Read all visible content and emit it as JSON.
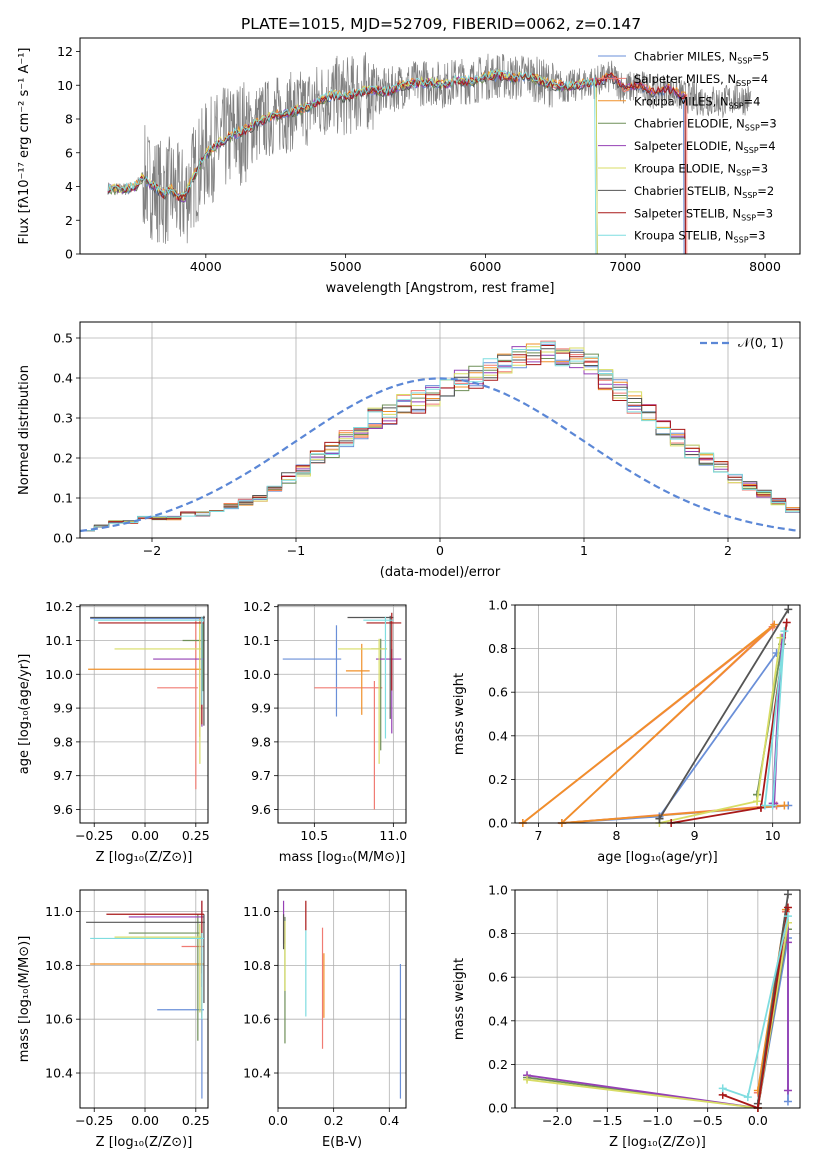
{
  "figure_title": "PLATE=1015, MJD=52709, FIBERID=0062, z=0.147",
  "series_colors": [
    "#6a8fd8",
    "#f07b73",
    "#f0902a",
    "#6f8f58",
    "#9540b5",
    "#d8dd66",
    "#555555",
    "#a81818",
    "#7fdde0"
  ],
  "chart_data": [
    {
      "id": "spectrum",
      "type": "line",
      "xlabel": "wavelength [Angstrom, rest frame]",
      "ylabel": "Flux [fλ10⁻¹⁷ erg cm⁻² s⁻¹ A⁻¹]",
      "xlim": [
        3100,
        8250
      ],
      "ylim": [
        0,
        12.8
      ],
      "x_ticks": [
        "4000",
        "5000",
        "6000",
        "7000",
        "8000"
      ],
      "y_ticks": [
        "0",
        "2",
        "4",
        "6",
        "8",
        "10",
        "12"
      ],
      "data_color": "#808080",
      "data": {
        "x": [
          3300,
          3400,
          3500,
          3550,
          3600,
          3650,
          3700,
          3750,
          3800,
          3850,
          3900,
          4000,
          4100,
          4200,
          4300,
          4400,
          4500,
          4600,
          4700,
          4800,
          4900,
          5000,
          5100,
          5200,
          5300,
          5400,
          5500,
          5600,
          5700,
          5800,
          5900,
          6000,
          6100,
          6200,
          6300,
          6400,
          6500,
          6600,
          6700,
          6800,
          6900,
          7000,
          7100,
          7200,
          7300,
          7400,
          7500,
          7600,
          7700,
          7800,
          7900
        ],
        "y": [
          3.9,
          3.8,
          4.0,
          4.6,
          4.1,
          3.9,
          3.5,
          3.9,
          3.4,
          3.3,
          4.4,
          5.9,
          6.6,
          7.1,
          7.4,
          7.9,
          8.2,
          8.4,
          8.6,
          9.0,
          9.4,
          9.3,
          9.6,
          9.7,
          9.6,
          10.0,
          10.1,
          10.2,
          10.0,
          10.3,
          10.2,
          10.5,
          10.6,
          10.4,
          10.6,
          10.2,
          10.0,
          9.9,
          10.1,
          10.2,
          10.5,
          9.8,
          10.0,
          9.6,
          9.8,
          9.4,
          9.2,
          9.1,
          9.0,
          9.3,
          9.1
        ]
      },
      "legend_position": "upper-right",
      "series": [
        {
          "name": "Chabrier MILES, N",
          "sub": "SSP",
          "suffix": "=5"
        },
        {
          "name": "Salpeter MILES, N",
          "sub": "SSP",
          "suffix": "=4"
        },
        {
          "name": "Kroupa MILES, N",
          "sub": "SSP",
          "suffix": "=4"
        },
        {
          "name": "Chabrier ELODIE, N",
          "sub": "SSP",
          "suffix": "=3"
        },
        {
          "name": "Salpeter ELODIE, N",
          "sub": "SSP",
          "suffix": "=4"
        },
        {
          "name": "Kroupa ELODIE, N",
          "sub": "SSP",
          "suffix": "=3"
        },
        {
          "name": "Chabrier STELIB, N",
          "sub": "SSP",
          "suffix": "=2"
        },
        {
          "name": "Salpeter STELIB, N",
          "sub": "SSP",
          "suffix": "=3"
        },
        {
          "name": "Kroupa STELIB, N",
          "sub": "SSP",
          "suffix": "=3"
        }
      ]
    },
    {
      "id": "residual-histogram",
      "type": "histogram",
      "xlabel": "(data-model)/error",
      "ylabel": "Normed distribution",
      "xlim": [
        -2.5,
        2.5
      ],
      "ylim": [
        0,
        0.54
      ],
      "x_ticks": [
        "−2",
        "−1",
        "0",
        "1",
        "2"
      ],
      "y_ticks": [
        "0.0",
        "0.1",
        "0.2",
        "0.3",
        "0.4",
        "0.5"
      ],
      "grid": true,
      "legend_position": "upper-right",
      "reference_curve": {
        "name": "𝒩(0, 1)",
        "mean": 0,
        "sigma": 1,
        "color": "#5b87d6"
      },
      "bin_width": 0.1,
      "bin_start": -2.5,
      "histogram_values": [
        0.02,
        0.03,
        0.04,
        0.04,
        0.05,
        0.05,
        0.05,
        0.06,
        0.06,
        0.07,
        0.08,
        0.09,
        0.1,
        0.12,
        0.15,
        0.17,
        0.2,
        0.22,
        0.25,
        0.27,
        0.3,
        0.31,
        0.33,
        0.34,
        0.36,
        0.38,
        0.39,
        0.4,
        0.42,
        0.44,
        0.45,
        0.46,
        0.47,
        0.46,
        0.45,
        0.43,
        0.4,
        0.37,
        0.34,
        0.31,
        0.28,
        0.25,
        0.22,
        0.2,
        0.18,
        0.15,
        0.13,
        0.11,
        0.09,
        0.07
      ]
    },
    {
      "id": "age-vs-Z",
      "type": "errorbar",
      "xlabel": "Z [log₁₀(Z/Z⊙)]",
      "ylabel": "age  [log₁₀(age/yr)]",
      "xlim": [
        -0.32,
        0.31
      ],
      "ylim": [
        9.56,
        10.205
      ],
      "x_ticks": [
        "−0.25",
        "0.00",
        "0.25"
      ],
      "x_tick_values": [
        -0.25,
        0,
        0.25
      ],
      "y_ticks": [
        "9.6",
        "9.7",
        "9.8",
        "9.9",
        "10.0",
        "10.1",
        "10.2"
      ],
      "y_tick_values": [
        9.6,
        9.7,
        9.8,
        9.9,
        10.0,
        10.1,
        10.2
      ],
      "grid": true,
      "points": [
        {
          "s": 0,
          "x": 0.28,
          "xerr_lo": 0.55,
          "xerr_hi": 0.01,
          "y": 10.165,
          "yerr_lo": 0.27,
          "yerr_hi": 0.005
        },
        {
          "s": 1,
          "x": 0.25,
          "xerr_lo": 0.19,
          "xerr_hi": 0.01,
          "y": 9.96,
          "yerr_lo": 0.3,
          "yerr_hi": 0.2
        },
        {
          "s": 2,
          "x": 0.27,
          "xerr_lo": 0.55,
          "xerr_hi": 0.01,
          "y": 10.015,
          "yerr_lo": 0.2,
          "yerr_hi": 0.15
        },
        {
          "s": 3,
          "x": 0.285,
          "xerr_lo": 0.1,
          "xerr_hi": 0.01,
          "y": 10.1,
          "yerr_lo": 0.15,
          "yerr_hi": 0.05
        },
        {
          "s": 4,
          "x": 0.28,
          "xerr_lo": 0.24,
          "xerr_hi": 0.01,
          "y": 10.045,
          "yerr_lo": 0.2,
          "yerr_hi": 0.1
        },
        {
          "s": 5,
          "x": 0.27,
          "xerr_lo": 0.42,
          "xerr_hi": 0.01,
          "y": 10.075,
          "yerr_lo": 0.34,
          "yerr_hi": 0.08
        },
        {
          "s": 6,
          "x": 0.29,
          "xerr_lo": 0.56,
          "xerr_hi": 0.005,
          "y": 10.168,
          "yerr_lo": 0.32,
          "yerr_hi": 0.005
        },
        {
          "s": 7,
          "x": 0.28,
          "xerr_lo": 0.51,
          "xerr_hi": 0.01,
          "y": 10.152,
          "yerr_lo": 0.3,
          "yerr_hi": 0.01
        },
        {
          "s": 8,
          "x": 0.28,
          "xerr_lo": 0.53,
          "xerr_hi": 0.01,
          "y": 10.16,
          "yerr_lo": 0.25,
          "yerr_hi": 0.01
        }
      ]
    },
    {
      "id": "age-vs-mass",
      "type": "errorbar",
      "xlabel": "mass [log₁₀(M/M⊙)]",
      "ylabel": "",
      "xlim": [
        10.27,
        11.08
      ],
      "ylim": [
        9.56,
        10.205
      ],
      "x_ticks": [
        "10.5",
        "11.0"
      ],
      "x_tick_values": [
        10.5,
        11.0
      ],
      "y_ticks": [
        "9.6",
        "9.7",
        "9.8",
        "9.9",
        "10.0",
        "10.1",
        "10.2"
      ],
      "y_tick_values": [
        9.6,
        9.7,
        9.8,
        9.9,
        10.0,
        10.1,
        10.2
      ],
      "grid": true,
      "points": [
        {
          "s": 0,
          "x": 10.64,
          "xerr_lo": 0.34,
          "xerr_hi": 0.03,
          "y": 10.045,
          "yerr_lo": 0.17,
          "yerr_hi": 0.1
        },
        {
          "s": 1,
          "x": 10.88,
          "xerr_lo": 0.38,
          "xerr_hi": 0.05,
          "y": 9.96,
          "yerr_lo": 0.36,
          "yerr_hi": 0.02
        },
        {
          "s": 2,
          "x": 10.8,
          "xerr_lo": 0.1,
          "xerr_hi": 0.05,
          "y": 10.01,
          "yerr_lo": 0.13,
          "yerr_hi": 0.08
        },
        {
          "s": 3,
          "x": 10.92,
          "xerr_lo": 0.06,
          "xerr_hi": 0.04,
          "y": 10.075,
          "yerr_lo": 0.3,
          "yerr_hi": 0.03
        },
        {
          "s": 4,
          "x": 10.99,
          "xerr_lo": 0.1,
          "xerr_hi": 0.06,
          "y": 10.045,
          "yerr_lo": 0.22,
          "yerr_hi": 0.03
        },
        {
          "s": 5,
          "x": 10.91,
          "xerr_lo": 0.26,
          "xerr_hi": 0.05,
          "y": 10.075,
          "yerr_lo": 0.34,
          "yerr_hi": 0.03
        },
        {
          "s": 6,
          "x": 10.98,
          "xerr_lo": 0.27,
          "xerr_hi": 0.02,
          "y": 10.168,
          "yerr_lo": 0.3,
          "yerr_hi": 0.005
        },
        {
          "s": 7,
          "x": 10.99,
          "xerr_lo": 0.16,
          "xerr_hi": 0.06,
          "y": 10.152,
          "yerr_lo": 0.2,
          "yerr_hi": 0.03
        },
        {
          "s": 8,
          "x": 10.95,
          "xerr_lo": 0.14,
          "xerr_hi": 0.05,
          "y": 10.16,
          "yerr_lo": 0.35,
          "yerr_hi": 0.01
        }
      ]
    },
    {
      "id": "weight-vs-age",
      "type": "line",
      "xlabel": "age  [log₁₀(age/yr)]",
      "ylabel": "mass weight",
      "xlim": [
        6.7,
        10.35
      ],
      "ylim": [
        0,
        1.0
      ],
      "x_ticks": [
        "7",
        "8",
        "9",
        "10"
      ],
      "x_tick_values": [
        7,
        8,
        9,
        10
      ],
      "y_ticks": [
        "0.0",
        "0.2",
        "0.4",
        "0.6",
        "0.8",
        "1.0"
      ],
      "y_tick_values": [
        0,
        0.2,
        0.4,
        0.6,
        0.8,
        1.0
      ],
      "grid": true,
      "series": [
        {
          "s": 0,
          "x": [
            8.55,
            10.05,
            8.55,
            7.3,
            10.2
          ],
          "y": [
            0.03,
            0.78,
            0.03,
            0.0,
            0.08
          ]
        },
        {
          "s": 1,
          "x": [
            6.8,
            10.0,
            7.3,
            10.05
          ],
          "y": [
            0.0,
            0.9,
            0.0,
            0.08
          ]
        },
        {
          "s": 2,
          "x": [
            6.8,
            10.02,
            7.3,
            10.15
          ],
          "y": [
            0.0,
            0.91,
            0.0,
            0.08
          ]
        },
        {
          "s": 3,
          "x": [
            9.8,
            10.12,
            9.8
          ],
          "y": [
            0.13,
            0.82,
            0.13
          ]
        },
        {
          "s": 4,
          "x": [
            10.0,
            10.12,
            10.02
          ],
          "y": [
            0.09,
            0.85,
            0.09
          ]
        },
        {
          "s": 5,
          "x": [
            8.55,
            9.8,
            10.1,
            9.8
          ],
          "y": [
            0.0,
            0.1,
            0.85,
            0.1
          ]
        },
        {
          "s": 6,
          "x": [
            8.55,
            10.2,
            8.55
          ],
          "y": [
            0.02,
            0.98,
            0.02
          ]
        },
        {
          "s": 7,
          "x": [
            8.7,
            9.85,
            10.18,
            9.85
          ],
          "y": [
            0.0,
            0.07,
            0.92,
            0.07
          ]
        },
        {
          "s": 8,
          "x": [
            9.9,
            10.15,
            10.0
          ],
          "y": [
            0.08,
            0.88,
            0.08
          ]
        }
      ]
    },
    {
      "id": "mass-vs-Z",
      "type": "errorbar",
      "xlabel": "Z [log₁₀(Z/Z⊙)]",
      "ylabel": "mass [log₁₀(M/M⊙)]",
      "xlim": [
        -0.32,
        0.31
      ],
      "ylim": [
        10.27,
        11.08
      ],
      "x_ticks": [
        "−0.25",
        "0.00",
        "0.25"
      ],
      "x_tick_values": [
        -0.25,
        0,
        0.25
      ],
      "y_ticks": [
        "10.4",
        "10.6",
        "10.8",
        "11.0"
      ],
      "y_tick_values": [
        10.4,
        10.6,
        10.8,
        11.0
      ],
      "grid": true,
      "points": [
        {
          "s": 0,
          "x": 0.28,
          "xerr_lo": 0.22,
          "xerr_hi": 0.01,
          "y": 10.635,
          "yerr_lo": 0.33,
          "yerr_hi": 0.02
        },
        {
          "s": 1,
          "x": 0.28,
          "xerr_lo": 0.1,
          "xerr_hi": 0.01,
          "y": 10.87,
          "yerr_lo": 0.25,
          "yerr_hi": 0.02
        },
        {
          "s": 2,
          "x": 0.28,
          "xerr_lo": 0.55,
          "xerr_hi": 0.01,
          "y": 10.805,
          "yerr_lo": 0.2,
          "yerr_hi": 0.04
        },
        {
          "s": 3,
          "x": 0.26,
          "xerr_lo": 0.34,
          "xerr_hi": 0.01,
          "y": 10.92,
          "yerr_lo": 0.4,
          "yerr_hi": 0.07
        },
        {
          "s": 4,
          "x": 0.28,
          "xerr_lo": 0.36,
          "xerr_hi": 0.01,
          "y": 10.98,
          "yerr_lo": 0.26,
          "yerr_hi": 0.06
        },
        {
          "s": 5,
          "x": 0.27,
          "xerr_lo": 0.42,
          "xerr_hi": 0.01,
          "y": 10.905,
          "yerr_lo": 0.28,
          "yerr_hi": 0.05
        },
        {
          "s": 6,
          "x": 0.29,
          "xerr_lo": 0.58,
          "xerr_hi": 0.005,
          "y": 10.96,
          "yerr_lo": 0.3,
          "yerr_hi": 0.03
        },
        {
          "s": 7,
          "x": 0.28,
          "xerr_lo": 0.47,
          "xerr_hi": 0.01,
          "y": 10.99,
          "yerr_lo": 0.22,
          "yerr_hi": 0.05
        },
        {
          "s": 8,
          "x": 0.28,
          "xerr_lo": 0.55,
          "xerr_hi": 0.01,
          "y": 10.9,
          "yerr_lo": 0.3,
          "yerr_hi": 0.02
        }
      ]
    },
    {
      "id": "mass-vs-ebv",
      "type": "errorbar",
      "xlabel": "E(B-V)",
      "ylabel": "",
      "xlim": [
        0,
        0.46
      ],
      "ylim": [
        10.27,
        11.08
      ],
      "x_ticks": [
        "0.0",
        "0.2",
        "0.4"
      ],
      "x_tick_values": [
        0,
        0.2,
        0.4
      ],
      "y_ticks": [
        "10.4",
        "10.6",
        "10.8",
        "11.0"
      ],
      "y_tick_values": [
        10.4,
        10.6,
        10.8,
        11.0
      ],
      "grid": true,
      "points": [
        {
          "s": 0,
          "x": 0.44,
          "xerr_lo": 0,
          "xerr_hi": 0,
          "y": 10.635,
          "yerr_lo": 0.33,
          "yerr_hi": 0.17
        },
        {
          "s": 1,
          "x": 0.16,
          "xerr_lo": 0,
          "xerr_hi": 0,
          "y": 10.87,
          "yerr_lo": 0.38,
          "yerr_hi": 0.07
        },
        {
          "s": 2,
          "x": 0.165,
          "xerr_lo": 0,
          "xerr_hi": 0,
          "y": 10.805,
          "yerr_lo": 0.2,
          "yerr_hi": 0.04
        },
        {
          "s": 3,
          "x": 0.025,
          "xerr_lo": 0,
          "xerr_hi": 0,
          "y": 10.9,
          "yerr_lo": 0.39,
          "yerr_hi": 0.08
        },
        {
          "s": 4,
          "x": 0.02,
          "xerr_lo": 0,
          "xerr_hi": 0,
          "y": 10.98,
          "yerr_lo": 0.1,
          "yerr_hi": 0.06
        },
        {
          "s": 5,
          "x": 0.025,
          "xerr_lo": 0,
          "xerr_hi": 0,
          "y": 10.905,
          "yerr_lo": 0.2,
          "yerr_hi": 0.06
        },
        {
          "s": 6,
          "x": 0.02,
          "xerr_lo": 0,
          "xerr_hi": 0,
          "y": 10.96,
          "yerr_lo": 0.1,
          "yerr_hi": 0.03
        },
        {
          "s": 7,
          "x": 0.1,
          "xerr_lo": 0,
          "xerr_hi": 0,
          "y": 10.99,
          "yerr_lo": 0.06,
          "yerr_hi": 0.05
        },
        {
          "s": 8,
          "x": 0.1,
          "xerr_lo": 0,
          "xerr_hi": 0,
          "y": 10.9,
          "yerr_lo": 0.29,
          "yerr_hi": 0.03
        }
      ]
    },
    {
      "id": "weight-vs-Z",
      "type": "line",
      "xlabel": "Z [log₁₀(Z/Z⊙)]",
      "ylabel": "mass weight",
      "xlim": [
        -2.42,
        0.42
      ],
      "ylim": [
        0,
        1.0
      ],
      "x_ticks": [
        "−2.0",
        "−1.5",
        "−1.0",
        "−0.5",
        "0.0"
      ],
      "x_tick_values": [
        -2.0,
        -1.5,
        -1.0,
        -0.5,
        0.0
      ],
      "y_ticks": [
        "0.0",
        "0.2",
        "0.4",
        "0.6",
        "0.8",
        "1.0"
      ],
      "y_tick_values": [
        0,
        0.2,
        0.4,
        0.6,
        0.8,
        1.0
      ],
      "grid": true,
      "series": [
        {
          "s": 0,
          "x": [
            0.0,
            0.3,
            0.3
          ],
          "y": [
            0.0,
            0.78,
            0.03
          ]
        },
        {
          "s": 1,
          "x": [
            0.0,
            0.28,
            0.0
          ],
          "y": [
            0.0,
            0.9,
            0.07
          ]
        },
        {
          "s": 2,
          "x": [
            0.0,
            0.28,
            0.0
          ],
          "y": [
            0.0,
            0.91,
            0.08
          ]
        },
        {
          "s": 3,
          "x": [
            -2.3,
            0.0,
            0.3
          ],
          "y": [
            0.14,
            0.0,
            0.82
          ]
        },
        {
          "s": 4,
          "x": [
            -2.3,
            0.0,
            0.3,
            0.3,
            0.3
          ],
          "y": [
            0.15,
            0.0,
            0.85,
            0.08,
            0.76
          ]
        },
        {
          "s": 5,
          "x": [
            -2.3,
            0.0,
            0.3
          ],
          "y": [
            0.13,
            0.0,
            0.85
          ]
        },
        {
          "s": 6,
          "x": [
            0.0,
            0.3
          ],
          "y": [
            0.02,
            0.98
          ]
        },
        {
          "s": 7,
          "x": [
            -0.35,
            0.0,
            0.3
          ],
          "y": [
            0.06,
            0.0,
            0.92
          ]
        },
        {
          "s": 8,
          "x": [
            -0.35,
            -0.1,
            0.3
          ],
          "y": [
            0.09,
            0.05,
            0.88
          ]
        }
      ]
    }
  ]
}
